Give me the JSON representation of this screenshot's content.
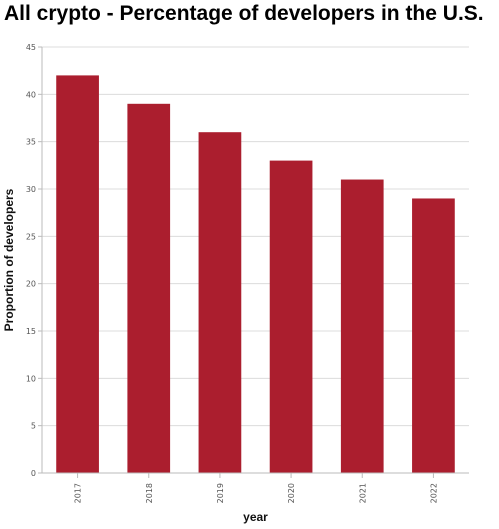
{
  "chart_data": {
    "type": "bar",
    "title": "All crypto - Percentage of developers in the U.S.",
    "xlabel": "year",
    "ylabel": "Proportion of developers",
    "categories": [
      "2017",
      "2018",
      "2019",
      "2020",
      "2021",
      "2022"
    ],
    "values": [
      42,
      39,
      36,
      33,
      31,
      29
    ],
    "ylim": [
      0,
      45
    ],
    "yticks": [
      0,
      5,
      10,
      15,
      20,
      25,
      30,
      35,
      40,
      45
    ],
    "grid": true,
    "legend": "none",
    "bar_color": "#ab1e2e",
    "grid_color": "#dcdcdc",
    "axis_color": "#bbbbbb"
  }
}
